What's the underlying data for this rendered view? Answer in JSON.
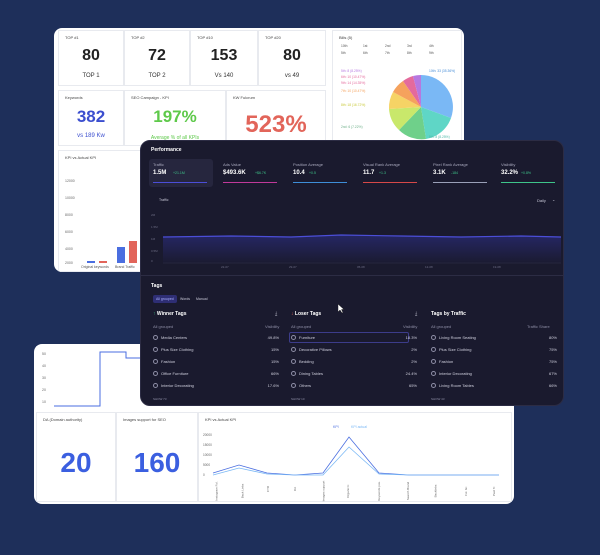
{
  "top_card": {
    "tiles": [
      {
        "title": "TOP #1",
        "value": "80",
        "sub": "TOP 1"
      },
      {
        "title": "TOP #2",
        "value": "72",
        "sub": "TOP 2"
      },
      {
        "title": "TOP #10",
        "value": "153",
        "sub": "Vs 140"
      },
      {
        "title": "TOP #20",
        "value": "80",
        "sub": "vs 49"
      }
    ],
    "keywords": {
      "title": "Keywords",
      "value": "382",
      "sub": "vs 189 Kw"
    },
    "seo_campaign": {
      "title": "SEO Campaign - KPI",
      "value": "197%",
      "sub": "Average % of all KPIs"
    },
    "kw_fulcrum": {
      "title": "KW Fulcrum",
      "value": "523%"
    },
    "kpi_chart_title": "KPI vs Actual KPI",
    "kpi_ticks": [
      "12000",
      "10000",
      "8000",
      "6000",
      "4000",
      "2000",
      "0"
    ],
    "kpi_bar_labels": [
      "Original keywords",
      "Brand Traffic"
    ]
  },
  "pie_card": {
    "title": "Bills (5)",
    "legend": [
      "10th",
      "1st",
      "2nd",
      "3rd",
      "4th",
      "5th",
      "6th",
      "7th",
      "8th",
      "9th"
    ],
    "slice_labels": [
      "10th: 33 (35.36%)",
      "5th: 8 (8.25%)",
      "6th: 10 (10.47%)",
      "9th: 14 (14.35%)",
      "7th: 10 (10.47%)",
      "8th: 18 (16.72%)",
      "2nd: 6 (7.22%)",
      "5th: 8 (8.25%)"
    ]
  },
  "performance": {
    "title": "Performance",
    "metrics": [
      {
        "label": "Traffic",
        "value": "1.5M",
        "delta": "+21.1M"
      },
      {
        "label": "Ads Value",
        "value": "$493.6K",
        "delta": "+$6.7K"
      },
      {
        "label": "Position Average",
        "value": "10.4",
        "delta": "+0.5"
      },
      {
        "label": "Visual Rank Average",
        "value": "11.7",
        "delta": "+1.3"
      },
      {
        "label": "Pixel Rank Average",
        "value": "3.1K",
        "delta": "-184"
      },
      {
        "label": "Visibility",
        "value": "32.2%",
        "delta": "+0.8%"
      }
    ],
    "chart_legend": "Traffic",
    "period": "Daily",
    "y_ticks": [
      "2M",
      "1.5M",
      "1M",
      "0.5M",
      "0"
    ],
    "x_ticks": [
      "22-07",
      "29-07",
      "05-08",
      "12-08",
      "19-08"
    ]
  },
  "tags": {
    "title": "Tags",
    "filters": [
      "All grouped",
      "Words",
      "Manual"
    ],
    "columns": [
      {
        "title": "Winner Tags",
        "head_left": "All grouped",
        "head_right": "Visibility",
        "rows": [
          {
            "name": "Media Centers",
            "value": "49.8%"
          },
          {
            "name": "Plus Size Clothing",
            "value": "15%"
          },
          {
            "name": "Fashion",
            "value": "15%"
          },
          {
            "name": "Office Furniture",
            "value": "66%"
          },
          {
            "name": "Interior Decorating",
            "value": "17.6%"
          }
        ],
        "footer": "SHOW 73"
      },
      {
        "title": "Loser Tags",
        "head_left": "All grouped",
        "head_right": "Visibility",
        "rows": [
          {
            "name": "Furniture",
            "value": "18.3%"
          },
          {
            "name": "Decorative Pillows",
            "value": "2%"
          },
          {
            "name": "Bedding",
            "value": "2%"
          },
          {
            "name": "Dining Tables",
            "value": "24.4%"
          },
          {
            "name": "Others",
            "value": "65%"
          }
        ],
        "footer": "SHOW 10"
      },
      {
        "title": "Tags by Traffic",
        "head_left": "All grouped",
        "head_right": "Traffic Share",
        "rows": [
          {
            "name": "Living Room Seating",
            "value": "80%"
          },
          {
            "name": "Plus Size Clothing",
            "value": "75%"
          },
          {
            "name": "Fashion",
            "value": "75%"
          },
          {
            "name": "Interior Decorating",
            "value": "67%"
          },
          {
            "name": "Living Room Tables",
            "value": "66%"
          }
        ],
        "footer": "SHOW 43"
      }
    ]
  },
  "bottom_card": {
    "step_ticks": [
      "50",
      "40",
      "30",
      "20",
      "10"
    ],
    "da": {
      "title": "DA (Domain authority)",
      "value": "20"
    },
    "images": {
      "title": "Images support for SEO",
      "value": "160"
    },
    "kpi2_title": "KPI vs Actual KPI",
    "kpi2_legend": [
      "KPI",
      "KPI actual"
    ],
    "kpi2_ticks": [
      "20000",
      "15000",
      "10000",
      "5000",
      "0"
    ],
    "kpi2_x": [
      "Instagram Fol.",
      "Back Links",
      "CTR",
      "DA",
      "Images support",
      "Organic tr.",
      "Keywords pos.",
      "Search Brand",
      "Backlinks",
      "Fol. Gr.",
      "Paid Tr."
    ]
  },
  "colors": {
    "background": "#1e2f5a",
    "blue_value": "#3b4ecf",
    "green_value": "#5ec94a",
    "red_value": "#e2655a",
    "panel": "#1a1a2e",
    "accent_line": "#4b4ed8"
  }
}
